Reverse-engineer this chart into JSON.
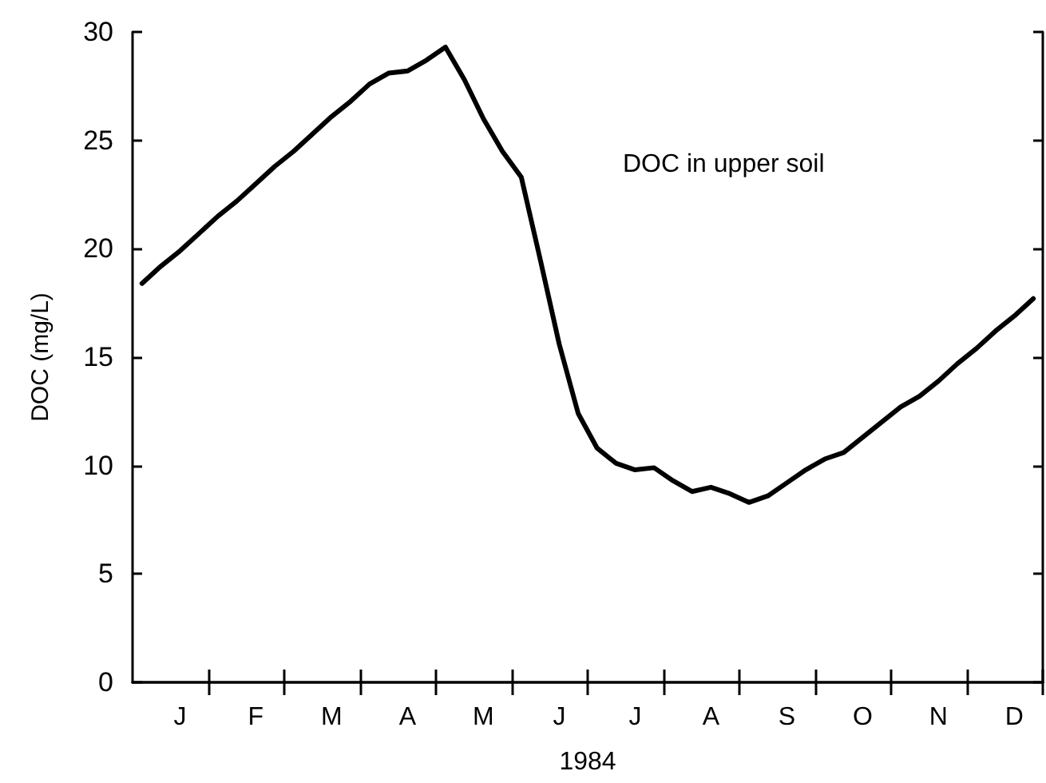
{
  "chart_data": {
    "type": "line",
    "xlabel": "1984",
    "ylabel": "DOC (mg/L)",
    "annotations": [
      "DOC in upper soil"
    ],
    "categories": [
      null,
      null,
      "J",
      null,
      null,
      null,
      "F",
      null,
      null,
      null,
      "M",
      null,
      null,
      null,
      "A",
      null,
      null,
      null,
      "M",
      null,
      null,
      null,
      "J",
      null,
      null,
      null,
      "J",
      null,
      null,
      null,
      "A",
      null,
      null,
      null,
      "S",
      null,
      null,
      null,
      "O",
      null,
      null,
      null,
      "N",
      null,
      null,
      null,
      "D",
      null
    ],
    "series": [
      {
        "color": "#000000",
        "values": [
          18.4,
          19.2,
          19.9,
          20.7,
          21.5,
          22.2,
          23.0,
          23.8,
          24.5,
          25.3,
          26.1,
          26.8,
          27.6,
          28.1,
          28.2,
          28.7,
          29.3,
          27.8,
          26.0,
          24.5,
          23.3,
          19.5,
          15.6,
          12.4,
          10.8,
          10.1,
          9.8,
          9.9,
          9.3,
          8.8,
          9.0,
          8.7,
          8.3,
          8.6,
          9.2,
          9.8,
          10.3,
          10.6,
          11.3,
          12.0,
          12.7,
          13.2,
          13.9,
          14.7,
          15.4,
          16.2,
          16.9,
          17.7
        ]
      }
    ],
    "ylim": [
      0,
      30
    ],
    "yticks": [
      0,
      5,
      10,
      15,
      20,
      25,
      30
    ],
    "grid": false,
    "marker": "none",
    "line_style": "solid"
  }
}
